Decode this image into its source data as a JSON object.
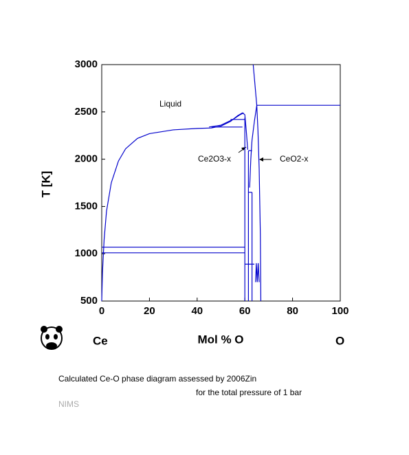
{
  "chart_data": {
    "type": "line",
    "xlabel": "Mol % O",
    "ylabel": "T [K]",
    "left_element": "Ce",
    "right_element": "O",
    "xlim": [
      0,
      100
    ],
    "ylim": [
      500,
      3000
    ],
    "xticks": [
      0,
      20,
      40,
      60,
      80,
      100
    ],
    "yticks": [
      500,
      1000,
      1500,
      2000,
      2500,
      3000
    ],
    "annotations": [
      {
        "text": "Liquid"
      },
      {
        "text": "Ce2O3-x"
      },
      {
        "text": "CeO2-x"
      }
    ],
    "series": [
      {
        "color": "#0000cc",
        "x": [
          0,
          0.3,
          1,
          2,
          4,
          7,
          10,
          15,
          20,
          30,
          40,
          46,
          50,
          54,
          57,
          59,
          60,
          60.6,
          61.2
        ],
        "values": [
          500,
          800,
          1150,
          1450,
          1750,
          1980,
          2110,
          2220,
          2270,
          2310,
          2325,
          2330,
          2350,
          2400,
          2460,
          2490,
          2470,
          2300,
          2100
        ]
      },
      {
        "color": "#0000cc",
        "x": [
          45,
          50,
          55,
          58,
          59.5
        ],
        "values": [
          2340,
          2360,
          2420,
          2470,
          2490
        ]
      },
      {
        "color": "#0000cc",
        "x": [
          0,
          60
        ],
        "values": [
          1070,
          1070
        ]
      },
      {
        "color": "#0000cc",
        "x": [
          0,
          60
        ],
        "values": [
          1010,
          1010
        ]
      },
      {
        "color": "#0000cc",
        "x": [
          46,
          59
        ],
        "values": [
          2340,
          2340
        ]
      },
      {
        "color": "#0000cc",
        "x": [
          54,
          60
        ],
        "values": [
          2420,
          2420
        ]
      },
      {
        "color": "#0000cc",
        "x": [
          60,
          60
        ],
        "values": [
          500,
          2440
        ]
      },
      {
        "color": "#0000cc",
        "x": [
          61.5,
          61.5
        ],
        "values": [
          500,
          2090
        ]
      },
      {
        "color": "#0000cc",
        "x": [
          61.5,
          63
        ],
        "values": [
          2090,
          2090
        ]
      },
      {
        "color": "#0000cc",
        "x": [
          62,
          62.5,
          63,
          64,
          65
        ],
        "values": [
          1700,
          2000,
          2200,
          2400,
          2570
        ]
      },
      {
        "color": "#0000cc",
        "x": [
          65,
          65.5,
          66,
          66.5,
          66.7
        ],
        "values": [
          2570,
          2300,
          1900,
          1200,
          500
        ]
      },
      {
        "color": "#0000cc",
        "x": [
          63.5,
          65
        ],
        "values": [
          3000,
          2570
        ]
      },
      {
        "color": "#0000cc",
        "x": [
          65,
          100
        ],
        "values": [
          2570,
          2570
        ]
      },
      {
        "color": "#0000cc",
        "x": [
          60,
          64
        ],
        "values": [
          890,
          890
        ]
      },
      {
        "color": "#0000cc",
        "x": [
          63,
          63
        ],
        "values": [
          500,
          1650
        ]
      },
      {
        "color": "#0000cc",
        "x": [
          61.5,
          63
        ],
        "values": [
          1650,
          1650
        ]
      },
      {
        "color": "#0000cc",
        "x": [
          64.5,
          64.8,
          65.2,
          65.6,
          66
        ],
        "values": [
          700,
          900,
          700,
          900,
          700
        ]
      }
    ]
  },
  "caption": [
    "Calculated Ce-O phase diagram assessed by 2006Zin",
    "for the total pressure of 1 bar"
  ],
  "credit": "NIMS"
}
